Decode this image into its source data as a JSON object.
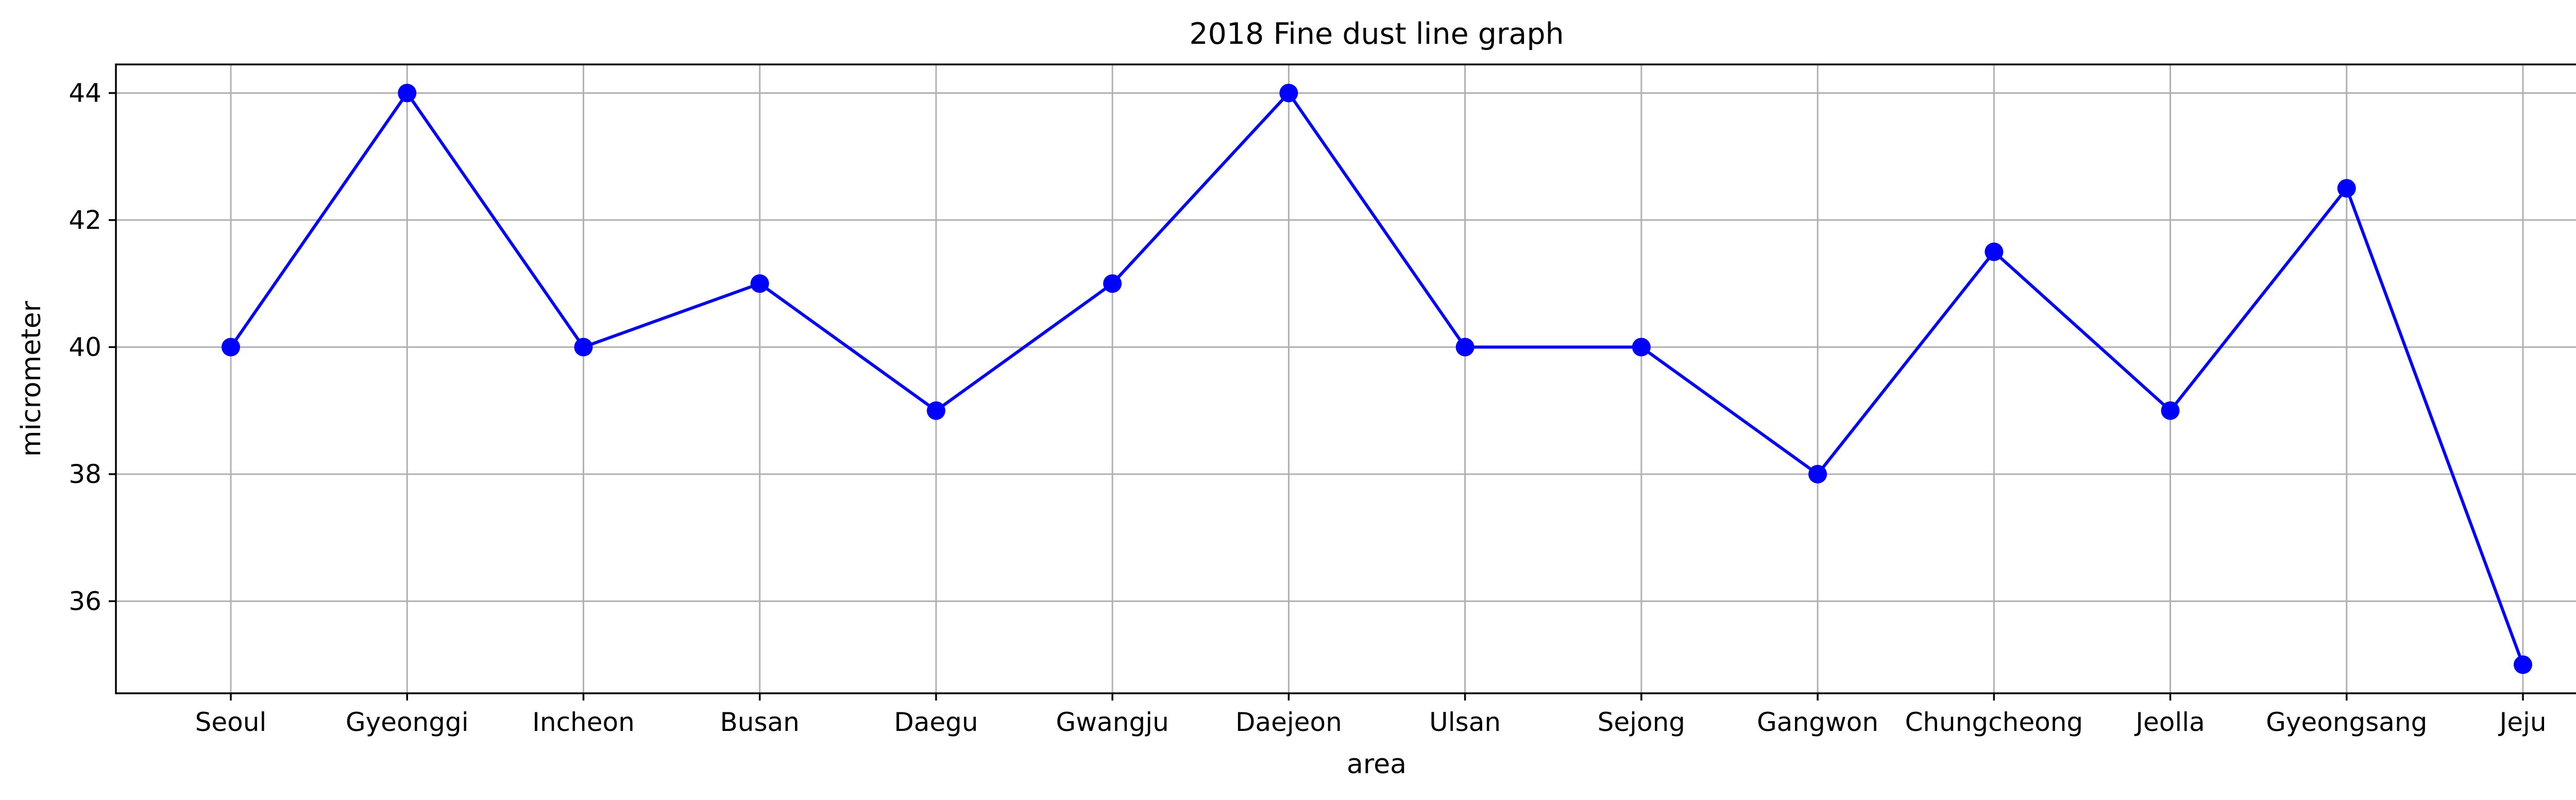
{
  "chart_data": {
    "type": "line",
    "title": "2018 Fine dust line graph",
    "xlabel": "area",
    "ylabel": "micrometer",
    "categories": [
      "Seoul",
      "Gyeonggi",
      "Incheon",
      "Busan",
      "Daegu",
      "Gwangju",
      "Daejeon",
      "Ulsan",
      "Sejong",
      "Gangwon",
      "Chungcheong",
      "Jeolla",
      "Gyeongsang",
      "Jeju"
    ],
    "series": [
      {
        "values": [
          40,
          44,
          40,
          41,
          39,
          41,
          44,
          40,
          40,
          38,
          41.5,
          39,
          42.5,
          35
        ]
      }
    ],
    "yticks": [
      36,
      38,
      40,
      42,
      44
    ],
    "ylim": [
      34.55,
      44.45
    ],
    "grid": true,
    "marker": "circle",
    "line_color": "#0000ff"
  }
}
